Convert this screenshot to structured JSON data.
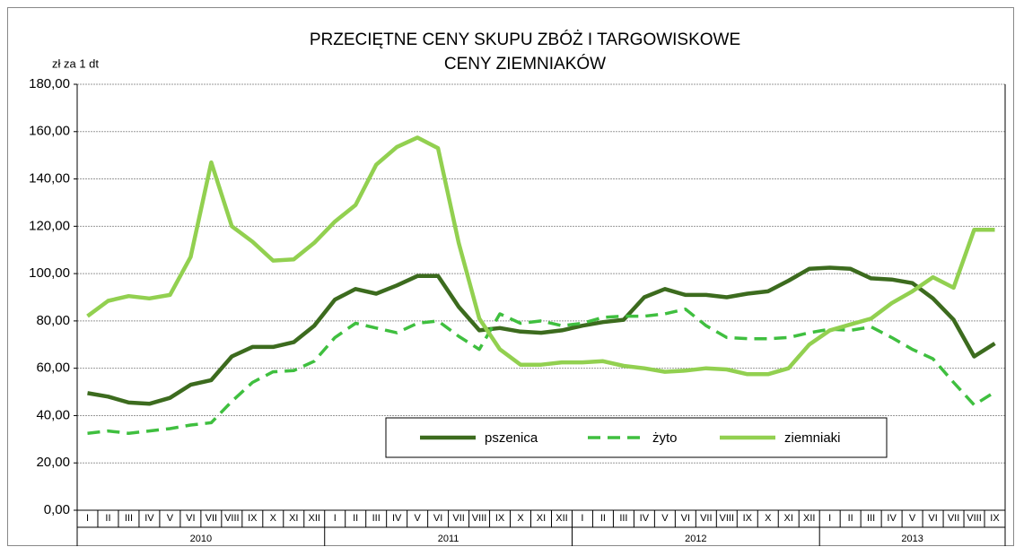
{
  "chart_data": {
    "type": "line",
    "title": [
      "PRZECIĘTNE CENY SKUPU ZBÓŻ I TARGOWISKOWE",
      "CENY ZIEMNIAKÓW"
    ],
    "y_label": "zł za 1 dt",
    "groups": [
      {
        "name": "2010",
        "categories": [
          "I",
          "II",
          "III",
          "IV",
          "V",
          "VI",
          "VII",
          "VIII",
          "IX",
          "X",
          "XI",
          "XII"
        ]
      },
      {
        "name": "2011",
        "categories": [
          "I",
          "II",
          "III",
          "IV",
          "V",
          "VI",
          "VII",
          "VIII",
          "IX",
          "X",
          "XI",
          "XII"
        ]
      },
      {
        "name": "2012",
        "categories": [
          "I",
          "II",
          "III",
          "IV",
          "V",
          "VI",
          "VII",
          "VIII",
          "IX",
          "X",
          "XI",
          "XII"
        ]
      },
      {
        "name": "2013",
        "categories": [
          "I",
          "II",
          "III",
          "IV",
          "V",
          "VI",
          "VII",
          "VIII",
          "IX"
        ]
      }
    ],
    "series": [
      {
        "name": "pszenica",
        "color": "#3c6b1e",
        "dashed": false,
        "values": [
          49.5,
          48,
          45.5,
          45,
          47.5,
          53,
          55,
          65,
          69,
          69,
          71,
          78,
          89,
          93.5,
          91.5,
          95,
          99,
          99,
          86,
          76,
          77,
          75.5,
          75,
          76,
          78,
          79.5,
          80.5,
          90,
          93.5,
          91,
          91,
          90,
          91.5,
          92.5,
          97,
          102,
          102.5,
          102,
          98,
          97.5,
          96,
          89.5,
          80.5,
          65,
          70.5
        ]
      },
      {
        "name": "żyto",
        "color": "#3fbf3f",
        "dashed": true,
        "values": [
          32.5,
          33.5,
          32.5,
          33.5,
          34.5,
          36,
          37,
          46,
          54,
          58.5,
          59,
          63,
          73,
          79,
          77,
          75,
          79,
          80,
          73.5,
          68,
          83,
          79,
          80,
          78,
          79,
          81.5,
          82,
          82,
          83,
          85,
          78,
          73,
          72.5,
          72.5,
          73,
          75,
          76.5,
          76,
          77.5,
          73,
          68,
          64,
          54,
          44.5,
          50
        ]
      },
      {
        "name": "ziemniaki",
        "color": "#92d050",
        "dashed": false,
        "values": [
          82,
          88.5,
          90.5,
          89.5,
          91,
          107,
          147,
          120,
          113.5,
          105.5,
          106,
          113,
          122,
          129,
          146,
          153.5,
          157.5,
          153,
          113,
          81,
          68,
          61.5,
          61.5,
          62.5,
          62.5,
          63,
          61,
          60,
          58.5,
          59,
          60,
          59.5,
          57.5,
          57.5,
          60,
          70,
          76,
          78.5,
          81,
          87.5,
          92.5,
          98.5,
          94,
          118.5,
          118.5
        ]
      }
    ],
    "ylim": [
      0,
      180
    ],
    "yticks": [
      {
        "value": 0,
        "label": "0,00"
      },
      {
        "value": 20,
        "label": "20,00"
      },
      {
        "value": 40,
        "label": "40,00"
      },
      {
        "value": 60,
        "label": "60,00"
      },
      {
        "value": 80,
        "label": "80,00"
      },
      {
        "value": 100,
        "label": "100,00"
      },
      {
        "value": 120,
        "label": "120,00"
      },
      {
        "value": 140,
        "label": "140,00"
      },
      {
        "value": 160,
        "label": "160,00"
      },
      {
        "value": 180,
        "label": "180,00"
      }
    ],
    "grid": true
  }
}
